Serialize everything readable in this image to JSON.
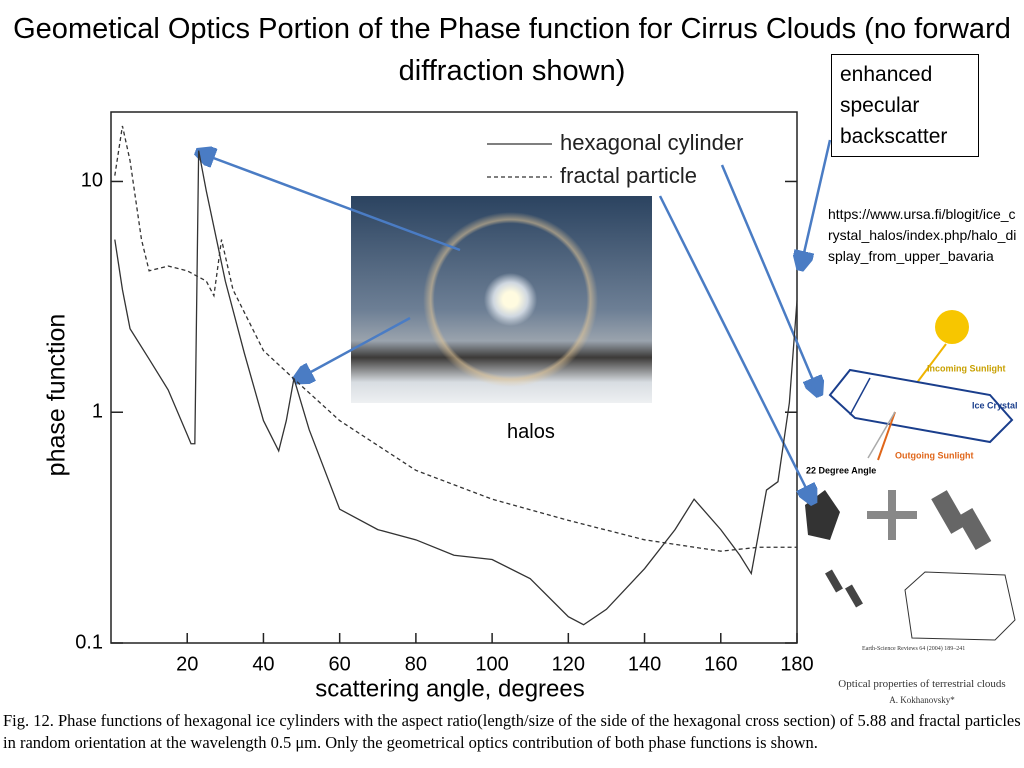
{
  "title": "Geometical Optics Portion of the Phase function for Cirrus Clouds (no forward diffraction shown)",
  "annotations": {
    "backscatter": "enhanced specular backscatter",
    "source_url": "https://www.ursa.fi/blogit/ice_crystal_halos/index.php/halo_display_from_upper_bavaria",
    "halos": "halos"
  },
  "diagram": {
    "incoming": "Incoming Sunlight",
    "crystal": "Ice Crystal",
    "outgoing": "Outgoing Sunlight",
    "angle": "22 Degree Angle"
  },
  "reference": {
    "journal": "Earth-Science Reviews 64 (2004) 189–241",
    "title": "Optical properties of terrestrial clouds",
    "author": "A. Kokhanovsky*"
  },
  "caption": "Fig. 12. Phase functions of hexagonal ice cylinders with the aspect ratio(length/size of the side of the hexagonal cross section) of 5.88 and fractal particles in random orientation at the wavelength 0.5 μm. Only the geometrical optics contribution of both phase functions is shown.",
  "chart_data": {
    "type": "line",
    "x_label": "scattering angle, degrees",
    "y_label": "phase function",
    "xlim": [
      0,
      180
    ],
    "xticks": [
      20,
      40,
      60,
      80,
      100,
      120,
      140,
      160,
      180
    ],
    "ylim": [
      0.1,
      20
    ],
    "yticks": [
      0.1,
      1,
      10
    ],
    "y_log": true,
    "series": [
      {
        "name": "hexagonal cylinder",
        "color": "#333333",
        "linestyle": "solid",
        "x": [
          1,
          3,
          5,
          10,
          15,
          20,
          21,
          22,
          23,
          25,
          30,
          35,
          40,
          44,
          46,
          48,
          52,
          60,
          70,
          80,
          90,
          100,
          110,
          120,
          124,
          130,
          140,
          148,
          153,
          160,
          165,
          168,
          172,
          175,
          178,
          180
        ],
        "values": [
          5.6,
          3.4,
          2.3,
          1.7,
          1.25,
          0.8,
          0.73,
          0.73,
          13.6,
          9.1,
          3.7,
          1.8,
          0.92,
          0.68,
          0.92,
          1.4,
          0.84,
          0.38,
          0.31,
          0.28,
          0.24,
          0.23,
          0.19,
          0.13,
          0.12,
          0.14,
          0.21,
          0.31,
          0.42,
          0.31,
          0.24,
          0.2,
          0.46,
          0.5,
          1.1,
          3.05
        ]
      },
      {
        "name": "fractal particle",
        "color": "#333333",
        "linestyle": "dashed",
        "x": [
          1,
          3,
          5,
          8,
          10,
          15,
          20,
          25,
          27,
          29,
          32,
          40,
          50,
          60,
          80,
          100,
          120,
          140,
          160,
          170,
          180
        ],
        "values": [
          10.6,
          17.4,
          12.3,
          5.6,
          4.1,
          4.3,
          4.1,
          3.7,
          3.2,
          5.6,
          3.4,
          1.85,
          1.3,
          0.92,
          0.56,
          0.42,
          0.34,
          0.28,
          0.25,
          0.26,
          0.26
        ]
      }
    ]
  }
}
